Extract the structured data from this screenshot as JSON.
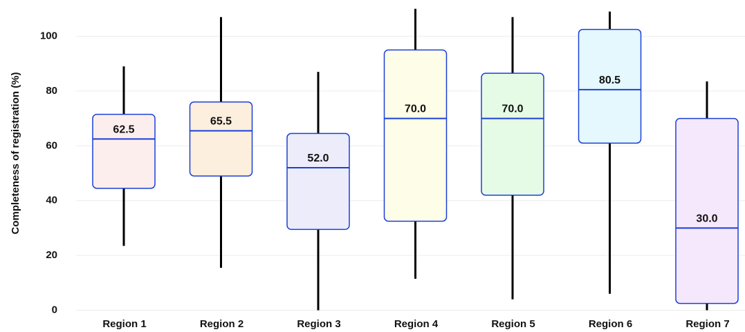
{
  "chart_data": {
    "type": "box",
    "ylabel": "Completeness of registration (%)",
    "xlabel": "",
    "ylim": [
      0,
      110
    ],
    "yticks": [
      0,
      20,
      40,
      60,
      80,
      100
    ],
    "grid": true,
    "categories": [
      "Region 1",
      "Region 2",
      "Region 3",
      "Region 4",
      "Region 5",
      "Region 6",
      "Region 7"
    ],
    "boxes": [
      {
        "label": "Region 1",
        "min": 23.5,
        "q1": 44.5,
        "median": 62.5,
        "q3": 71.5,
        "max": 89.0,
        "median_label": "62.5",
        "fill": "#fdeeee"
      },
      {
        "label": "Region 2",
        "min": 15.5,
        "q1": 49.0,
        "median": 65.5,
        "q3": 76.0,
        "max": 107.0,
        "median_label": "65.5",
        "fill": "#fdefdd"
      },
      {
        "label": "Region 3",
        "min": 0.0,
        "q1": 29.5,
        "median": 52.0,
        "q3": 64.5,
        "max": 87.0,
        "median_label": "52.0",
        "fill": "#ececfb"
      },
      {
        "label": "Region 4",
        "min": 11.5,
        "q1": 32.5,
        "median": 70.0,
        "q3": 95.0,
        "max": 110.0,
        "median_label": "70.0",
        "fill": "#fefde8"
      },
      {
        "label": "Region 5",
        "min": 4.0,
        "q1": 42.0,
        "median": 70.0,
        "q3": 86.5,
        "max": 107.0,
        "median_label": "70.0",
        "fill": "#e6fbe6"
      },
      {
        "label": "Region 6",
        "min": 6.0,
        "q1": 61.0,
        "median": 80.5,
        "q3": 102.5,
        "max": 109.0,
        "median_label": "80.5",
        "fill": "#e4f8fd"
      },
      {
        "label": "Region 7",
        "min": 0.0,
        "q1": 2.5,
        "median": 30.0,
        "q3": 70.0,
        "max": 83.5,
        "median_label": "30.0",
        "fill": "#f6e8fc"
      }
    ],
    "colors": {
      "box_border": "#1a3fd6",
      "median_line": "#1a3fd6",
      "whisker": "#000000",
      "grid": "#ececec"
    }
  }
}
